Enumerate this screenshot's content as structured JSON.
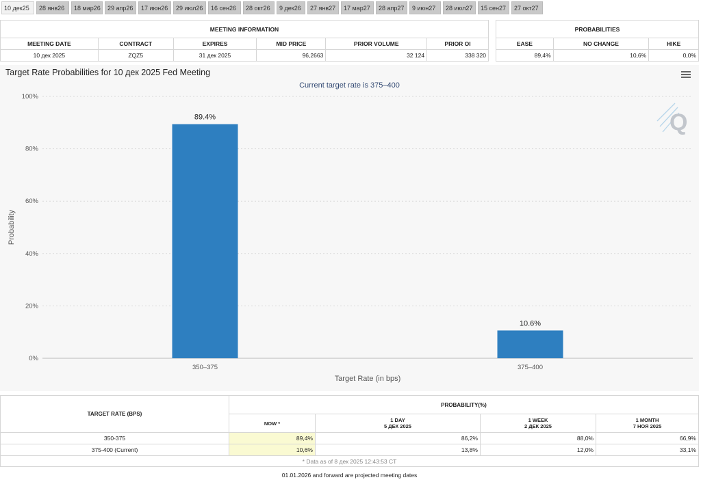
{
  "tabs": [
    "10 дек25",
    "28 янв26",
    "18 мар26",
    "29 апр26",
    "17 июн26",
    "29 июл26",
    "16 сен26",
    "28 окт26",
    "9 дек26",
    "27 янв27",
    "17 мар27",
    "28 апр27",
    "9 июн27",
    "28 июл27",
    "15 сен27",
    "27 окт27"
  ],
  "meeting_info": {
    "title": "MEETING INFORMATION",
    "headers": [
      "MEETING DATE",
      "CONTRACT",
      "EXPIRES",
      "MID PRICE",
      "PRIOR VOLUME",
      "PRIOR OI"
    ],
    "row": [
      "10 дек 2025",
      "ZQZ5",
      "31 дек 2025",
      "96,2663",
      "32 124",
      "338 320"
    ]
  },
  "probabilities": {
    "title": "PROBABILITIES",
    "headers": [
      "EASE",
      "NO CHANGE",
      "HIKE"
    ],
    "row": [
      "89,4%",
      "10,6%",
      "0,0%"
    ]
  },
  "chart_data": {
    "type": "bar",
    "title": "Target Rate Probabilities for 10 дек 2025 Fed Meeting",
    "subtitle": "Current target rate is 375–400",
    "categories": [
      "350–375",
      "375–400"
    ],
    "values": [
      89.4,
      10.6
    ],
    "data_labels": [
      "89.4%",
      "10.6%"
    ],
    "xlabel": "Target Rate (in bps)",
    "ylabel": "Probability",
    "ylim": [
      0,
      100
    ],
    "yticks": [
      0,
      20,
      40,
      60,
      80,
      100
    ],
    "ytick_labels": [
      "0%",
      "20%",
      "40%",
      "60%",
      "80%",
      "100%"
    ],
    "bar_color": "#2e7fc0",
    "grid": true
  },
  "bottom": {
    "target_rate_header": "TARGET RATE (BPS)",
    "probability_header": "PROBABILITY(%)",
    "columns": [
      {
        "line1": "NOW *",
        "line2": ""
      },
      {
        "line1": "1 DAY",
        "line2": "5 ДЕК 2025"
      },
      {
        "line1": "1 WEEK",
        "line2": "2 ДЕК 2025"
      },
      {
        "line1": "1 MONTH",
        "line2": "7 НОЯ 2025"
      }
    ],
    "rows": [
      {
        "rate": "350-375",
        "values": [
          "89,4%",
          "86,2%",
          "88,0%",
          "66,9%"
        ]
      },
      {
        "rate": "375-400 (Current)",
        "values": [
          "10,6%",
          "13,8%",
          "12,0%",
          "33,1%"
        ]
      }
    ],
    "footnote": "* Data as of 8 дек 2025 12:43:53 CT",
    "projected_note": "01.01.2026 and forward are projected meeting dates"
  }
}
